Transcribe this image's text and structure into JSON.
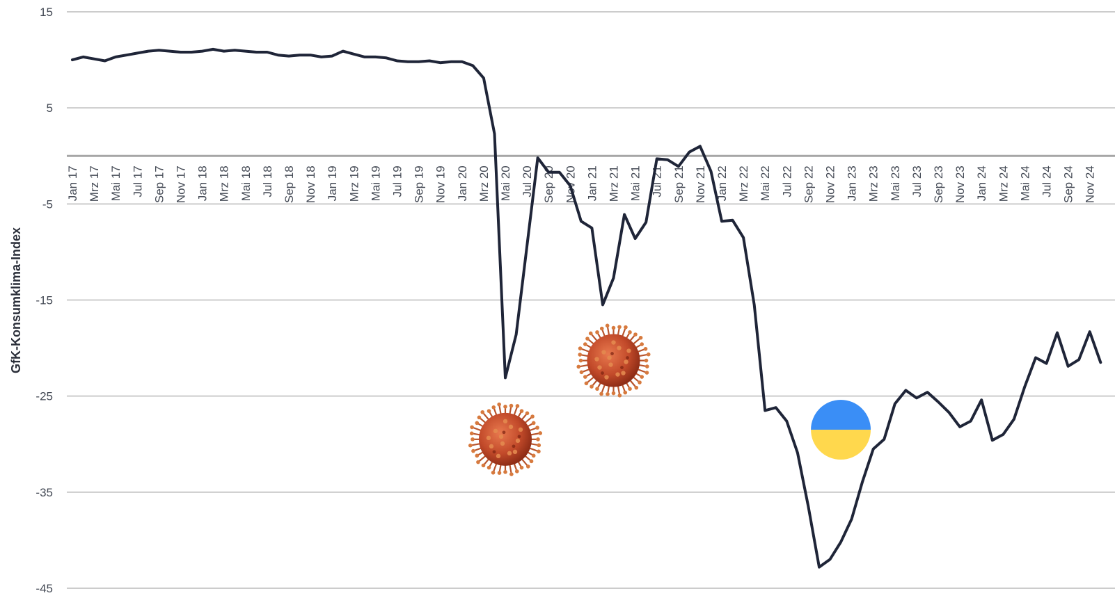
{
  "chart_data": {
    "type": "line",
    "title": "",
    "xlabel": "",
    "ylabel": "GfK-Konsumklima-Index",
    "ylim": [
      -45,
      15
    ],
    "yticks": [
      15,
      5,
      -5,
      -15,
      -25,
      -35,
      -45
    ],
    "grid": true,
    "legend": "none",
    "x_tick_labels": [
      "Jan 17",
      "Mrz 17",
      "Mai 17",
      "Jul 17",
      "Sep 17",
      "Nov 17",
      "Jan 18",
      "Mrz 18",
      "Mai 18",
      "Jul 18",
      "Sep 18",
      "Nov 18",
      "Jan 19",
      "Mrz 19",
      "Mai 19",
      "Jul 19",
      "Sep 19",
      "Nov 19",
      "Jan 20",
      "Mrz 20",
      "Mai 20",
      "Jul 20",
      "Sep 20",
      "Nov 20",
      "Jan 21",
      "Mrz 21",
      "Mai 21",
      "Jul 21",
      "Sep 21",
      "Nov 21",
      "Jan 22",
      "Mrz 22",
      "Mai 22",
      "Jul 22",
      "Sep 22",
      "Nov 22",
      "Jan 23",
      "Mrz 23",
      "Mai 23",
      "Jul 23",
      "Sep 23",
      "Nov 23",
      "Jan 24",
      "Mrz 24",
      "Mai 24",
      "Jul 24",
      "Sep 24",
      "Nov 24"
    ],
    "series": [
      {
        "color": "#1f2538",
        "values": [
          10.0,
          10.3,
          10.1,
          9.9,
          10.3,
          10.5,
          10.7,
          10.9,
          11.0,
          10.9,
          10.8,
          10.8,
          10.9,
          11.1,
          10.9,
          11.0,
          10.9,
          10.8,
          10.8,
          10.5,
          10.4,
          10.5,
          10.5,
          10.3,
          10.4,
          10.9,
          10.6,
          10.3,
          10.3,
          10.2,
          9.9,
          9.8,
          9.8,
          9.9,
          9.7,
          9.8,
          9.8,
          9.4,
          8.1,
          2.3,
          -23.1,
          -18.6,
          -9.4,
          -0.2,
          -1.7,
          -1.7,
          -3.1,
          -6.8,
          -7.5,
          -15.5,
          -12.7,
          -6.1,
          -8.6,
          -6.9,
          -0.3,
          -0.4,
          -1.1,
          0.4,
          1.0,
          -1.6,
          -6.8,
          -6.7,
          -8.5,
          -15.5,
          -26.5,
          -26.2,
          -27.6,
          -30.9,
          -36.5,
          -42.8,
          -42.0,
          -40.2,
          -37.8,
          -33.9,
          -30.5,
          -29.5,
          -25.8,
          -24.4,
          -25.2,
          -24.6,
          -25.6,
          -26.7,
          -28.2,
          -27.6,
          -25.4,
          -29.6,
          -29.0,
          -27.4,
          -24.0,
          -21.0,
          -21.6,
          -18.4,
          -21.9,
          -21.2,
          -18.3,
          -21.5
        ]
      }
    ],
    "annotations": [
      {
        "type": "icon",
        "name": "coronavirus-icon",
        "x_index": 40,
        "y": -29.5
      },
      {
        "type": "icon",
        "name": "coronavirus-icon",
        "x_index": 50,
        "y": -21.3
      },
      {
        "type": "icon",
        "name": "ukraine-flag-icon",
        "x_index": 71,
        "y": -28.5,
        "colors": [
          "#3a8ef6",
          "#ffd84d"
        ]
      }
    ]
  }
}
